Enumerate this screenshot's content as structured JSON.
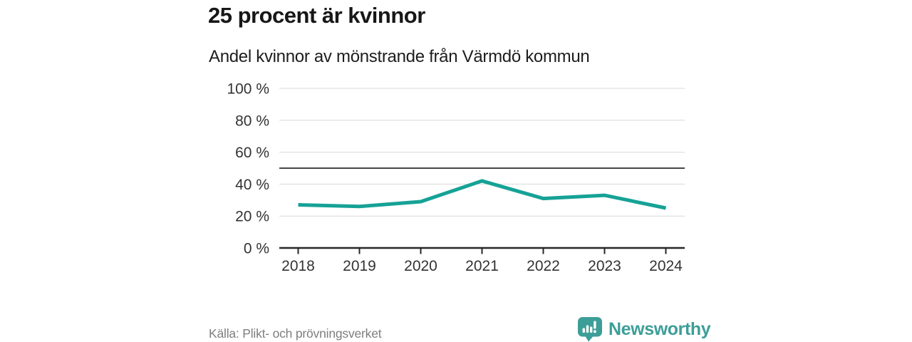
{
  "header": {
    "title": "25 procent är kvinnor",
    "subtitle": "Andel kvinnor av mönstrande från Värmdö kommun"
  },
  "chart_data": {
    "type": "line",
    "title": "25 procent är kvinnor",
    "subtitle": "Andel kvinnor av mönstrande från Värmdö kommun",
    "x": [
      "2018",
      "2019",
      "2020",
      "2021",
      "2022",
      "2023",
      "2024"
    ],
    "series": [
      {
        "name": "Andel kvinnor av mönstrande",
        "values": [
          27,
          26,
          29,
          42,
          31,
          33,
          25
        ]
      }
    ],
    "unit": "%",
    "ylim": [
      0,
      100
    ],
    "yticks": [
      {
        "value": 0,
        "label": "0 %"
      },
      {
        "value": 20,
        "label": "20 %"
      },
      {
        "value": 40,
        "label": "40 %"
      },
      {
        "value": 60,
        "label": "60 %"
      },
      {
        "value": 80,
        "label": "80 %"
      },
      {
        "value": 100,
        "label": "100 %"
      }
    ],
    "reference_line": {
      "value": 50
    },
    "grid": "horizontal",
    "legend": "none",
    "colors": {
      "line": "#16a296",
      "gridline": "#d9d9d9",
      "reference_line": "#474747",
      "axis": "#262626",
      "tick_label": "#333333"
    }
  },
  "footer": {
    "source": "Källa: Plikt- och prövningsverket",
    "brand": "Newsworthy",
    "brand_color": "#3d9e98",
    "brand_icon": "bar-chart-speech-bubble"
  }
}
